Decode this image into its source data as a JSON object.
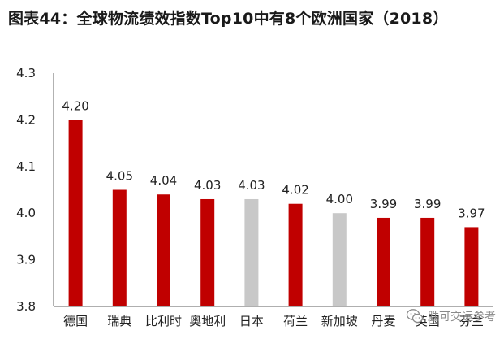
{
  "title": "图表44：全球物流绩效指数Top10中有8个欧洲国家（2018）",
  "watermark": {
    "text": "胜可交运参考",
    "icon": "wechat-icon"
  },
  "colors": {
    "europe": "#c00000",
    "other": "#c8c8c8",
    "axis": "#7f7f7f"
  },
  "chart_data": {
    "type": "bar",
    "title": "图表44：全球物流绩效指数Top10中有8个欧洲国家（2018）",
    "xlabel": "",
    "ylabel": "",
    "ylim": [
      3.8,
      4.3
    ],
    "yticks": [
      "3.8",
      "3.9",
      "4.0",
      "4.1",
      "4.2",
      "4.3"
    ],
    "grid": false,
    "legend": "none",
    "categories": [
      "德国",
      "瑞典",
      "比利时",
      "奥地利",
      "日本",
      "荷兰",
      "新加坡",
      "丹麦",
      "英国",
      "芬兰"
    ],
    "values": [
      4.2,
      4.05,
      4.04,
      4.03,
      4.03,
      4.02,
      4.0,
      3.99,
      3.99,
      3.97
    ],
    "value_labels": [
      "4.20",
      "4.05",
      "4.04",
      "4.03",
      "4.03",
      "4.02",
      "4.00",
      "3.99",
      "3.99",
      "3.97"
    ],
    "is_europe": [
      true,
      true,
      true,
      true,
      false,
      true,
      false,
      true,
      true,
      true
    ]
  }
}
